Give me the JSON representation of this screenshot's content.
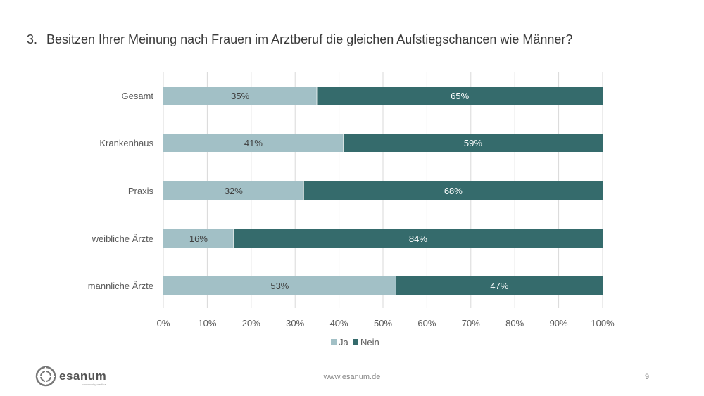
{
  "slide": {
    "title_number": "3.",
    "title_text": "Besitzen Ihrer Meinung nach Frauen im Arztberuf die gleichen Aufstiegschancen wie Männer?",
    "footer_url": "www.esanum.de",
    "page_number": "9",
    "logo_text": "esanum",
    "logo_tagline": "community medical"
  },
  "colors": {
    "ja": "#a2c0c6",
    "nein": "#356b6c",
    "grid": "#d9d9d9",
    "text": "#595959"
  },
  "chart_data": {
    "type": "bar",
    "orientation": "horizontal",
    "stacked": true,
    "categories": [
      "Gesamt",
      "Krankenhaus",
      "Praxis",
      "weibliche Ärzte",
      "männliche Ärzte"
    ],
    "series": [
      {
        "name": "Ja",
        "values": [
          35,
          41,
          32,
          16,
          53
        ],
        "labels": [
          "35%",
          "41%",
          "32%",
          "16%",
          "53%"
        ]
      },
      {
        "name": "Nein",
        "values": [
          65,
          59,
          68,
          84,
          47
        ],
        "labels": [
          "65%",
          "59%",
          "68%",
          "84%",
          "47%"
        ]
      }
    ],
    "xlim": [
      0,
      100
    ],
    "xticks": [
      "0%",
      "10%",
      "20%",
      "30%",
      "40%",
      "50%",
      "60%",
      "70%",
      "80%",
      "90%",
      "100%"
    ],
    "grid": true,
    "legend": "bottom-center"
  }
}
